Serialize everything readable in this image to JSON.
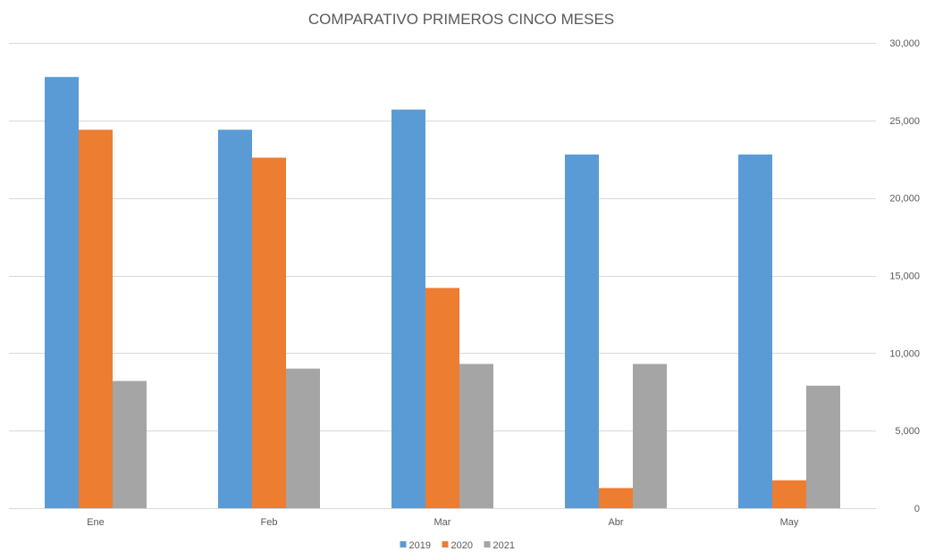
{
  "chart_data": {
    "type": "bar",
    "title": "COMPARATIVO PRIMEROS CINCO MESES",
    "xlabel": "",
    "ylabel": "",
    "categories": [
      "Ene",
      "Feb",
      "Mar",
      "Abr",
      "May"
    ],
    "series": [
      {
        "name": "2019",
        "color": "#5B9BD5",
        "values": [
          27800,
          24400,
          25700,
          22800,
          22800
        ]
      },
      {
        "name": "2020",
        "color": "#ED7D31",
        "values": [
          24400,
          22600,
          14200,
          1300,
          1800
        ]
      },
      {
        "name": "2021",
        "color": "#A5A5A5",
        "values": [
          8200,
          9000,
          9300,
          9300,
          7900
        ]
      }
    ],
    "ylim": [
      0,
      30000
    ],
    "yticks": [
      0,
      5000,
      10000,
      15000,
      20000,
      25000,
      30000
    ],
    "ytick_labels": [
      "0",
      "5,000",
      "10,000",
      "15,000",
      "20,000",
      "25,000",
      "30,000"
    ],
    "y_axis_side": "right",
    "grid": true,
    "legend_position": "bottom",
    "colors": {
      "grid": "#D9D9D9",
      "text": "#595959"
    }
  }
}
